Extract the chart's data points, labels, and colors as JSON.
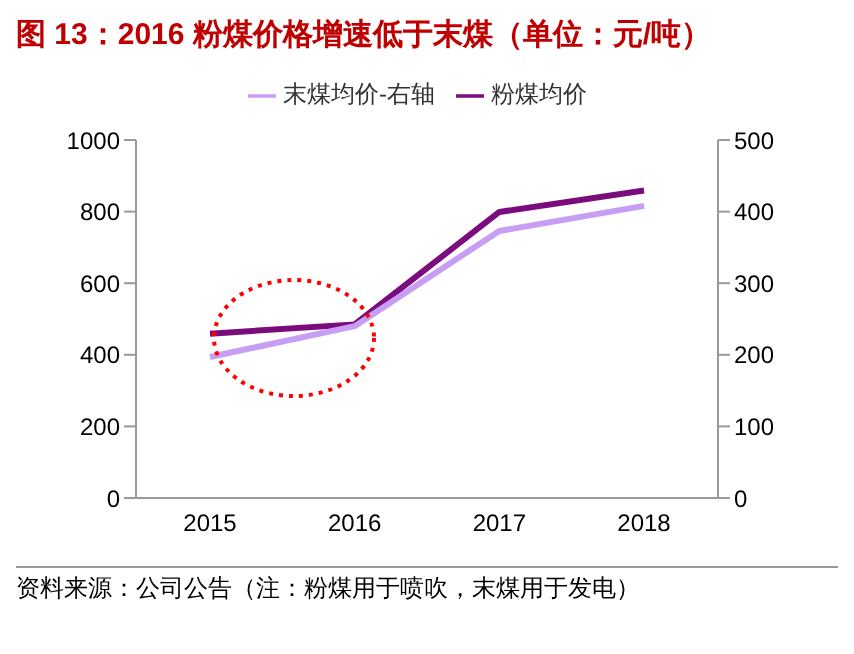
{
  "chart_data": {
    "type": "line",
    "title": "图 13：2016 粉煤价格增速低于末煤（单位：元/吨）",
    "categories": [
      "2015",
      "2016",
      "2017",
      "2018"
    ],
    "series": [
      {
        "name": "粉煤均价",
        "color": "#7b0c7e",
        "values": [
          459,
          485,
          799,
          859
        ]
      },
      {
        "name": "末煤均价-右轴",
        "color": "#c89ef5",
        "values": [
          197,
          240,
          373,
          408
        ],
        "axis": "y2"
      }
    ],
    "ylim": [
      0,
      1000
    ],
    "yticks": [
      0,
      200,
      400,
      600,
      800,
      1000
    ],
    "y2lim": [
      0,
      500
    ],
    "y2ticks": [
      0,
      100,
      200,
      300,
      400,
      500
    ],
    "grid": false,
    "legend": "top",
    "marker": "none",
    "line_style": "solid",
    "annotations": [
      "资料来源：公司公告（注：粉煤用于喷吹，末煤用于发电）"
    ]
  }
}
